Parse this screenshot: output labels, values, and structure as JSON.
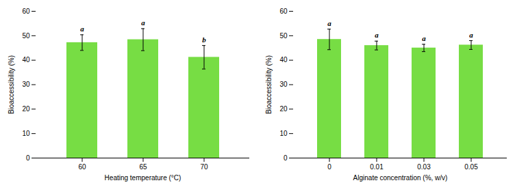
{
  "chart_data": [
    {
      "type": "bar",
      "categories": [
        "60",
        "65",
        "70"
      ],
      "values": [
        47.2,
        48.4,
        41.2
      ],
      "errors": [
        3.2,
        4.5,
        4.8
      ],
      "labels": [
        "a",
        "a",
        "b"
      ],
      "xlabel": "Heating temperature (°C)",
      "ylabel": "Bioaccessibility (%)",
      "ylim": [
        0,
        60
      ],
      "yticks": [
        0,
        10,
        20,
        30,
        40,
        50,
        60
      ],
      "color": "#77DD44"
    },
    {
      "type": "bar",
      "categories": [
        "0",
        "0.01",
        "0.03",
        "0.05"
      ],
      "values": [
        48.5,
        46.0,
        45.0,
        46.2
      ],
      "errors": [
        4.2,
        1.8,
        1.5,
        1.8
      ],
      "labels": [
        "a",
        "a",
        "a",
        "a"
      ],
      "xlabel": "Alginate concentration (%, w/v)",
      "ylabel": "Bioaccessibility (%)",
      "ylim": [
        0,
        60
      ],
      "yticks": [
        0,
        10,
        20,
        30,
        40,
        50,
        60
      ],
      "color": "#77DD44"
    }
  ]
}
